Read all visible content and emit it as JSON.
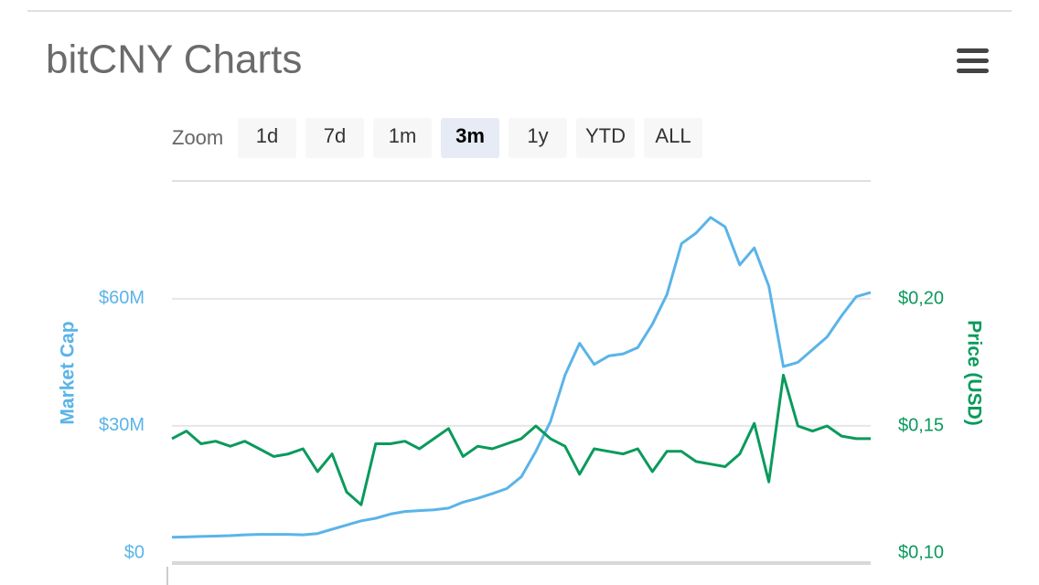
{
  "header": {
    "title": "bitCNY Charts"
  },
  "zoom": {
    "label": "Zoom",
    "buttons": [
      "1d",
      "7d",
      "1m",
      "3m",
      "1y",
      "YTD",
      "ALL"
    ],
    "selected": 3
  },
  "chart_data": {
    "type": "line",
    "y_label": "Market Cap",
    "y2_label": "Price (USD)",
    "categories": [
      null,
      null,
      null,
      null,
      null,
      null,
      null,
      null,
      null,
      null,
      null,
      null,
      null,
      null,
      null,
      null,
      null,
      null,
      null,
      null,
      null,
      null,
      null,
      null,
      null,
      null,
      null,
      null,
      null,
      null,
      null,
      null,
      null,
      null,
      null,
      null,
      null,
      null,
      null,
      null,
      null,
      null,
      null,
      null,
      null,
      null,
      null,
      null,
      null
    ],
    "series": [
      {
        "name": "Market Cap",
        "color": "#5ab4e8",
        "axis": "y",
        "values": [
          3700000,
          3800000,
          3900000,
          4000000,
          4100000,
          4300000,
          4400000,
          4400000,
          4400000,
          4300000,
          4600000,
          5600000,
          6600000,
          7600000,
          8200000,
          9200000,
          9800000,
          10000000,
          10200000,
          10600000,
          12000000,
          12900000,
          14000000,
          15200000,
          18000000,
          24000000,
          31000000,
          42000000,
          49500000,
          44500000,
          46500000,
          47000000,
          48500000,
          54000000,
          61000000,
          73000000,
          75500000,
          79200000,
          77000000,
          68000000,
          72000000,
          63000000,
          44000000,
          45000000,
          48000000,
          51000000,
          56000000,
          60500000,
          61500000
        ]
      },
      {
        "name": "Price (USD)",
        "color": "#0a9a5c",
        "axis": "y2",
        "values": [
          0.145,
          0.148,
          0.143,
          0.144,
          0.142,
          0.144,
          0.141,
          0.138,
          0.139,
          0.141,
          0.132,
          0.139,
          0.124,
          0.119,
          0.143,
          0.143,
          0.144,
          0.141,
          0.145,
          0.149,
          0.138,
          0.142,
          0.141,
          0.143,
          0.145,
          0.15,
          0.145,
          0.142,
          0.131,
          0.141,
          0.14,
          0.139,
          0.141,
          0.132,
          0.14,
          0.14,
          0.136,
          0.135,
          0.134,
          0.139,
          0.151,
          0.128,
          0.17,
          0.15,
          0.148,
          0.15,
          0.146,
          0.145,
          0.145
        ]
      }
    ],
    "ylim": [
      0,
      87800000
    ],
    "yticks": [
      {
        "value": 0,
        "label": "$0"
      },
      {
        "value": 30000000,
        "label": "$30M"
      },
      {
        "value": 60000000,
        "label": "$60M"
      }
    ],
    "y2lim": [
      0.1,
      0.2464
    ],
    "y2ticks": [
      {
        "value": 0.1,
        "label": "$0,10"
      },
      {
        "value": 0.15,
        "label": "$0,15"
      },
      {
        "value": 0.2,
        "label": "$0,20"
      }
    ],
    "grid": true
  }
}
